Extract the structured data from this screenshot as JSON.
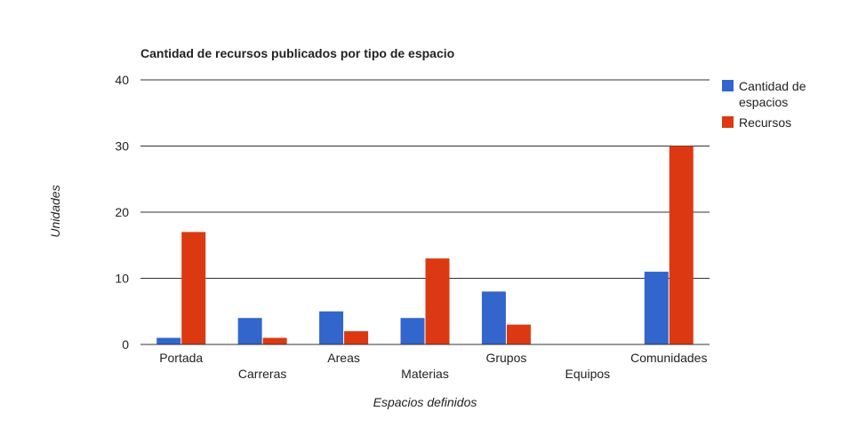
{
  "chart_data": {
    "type": "bar",
    "title": "Cantidad de recursos publicados por tipo de espacio",
    "xlabel": "Espacios definidos",
    "ylabel": "Unidades",
    "categories": [
      "Portada",
      "Carreras",
      "Areas",
      "Materias",
      "Grupos",
      "Equipos",
      "Comunidades"
    ],
    "series": [
      {
        "name": "Cantidad de espacios",
        "color": "#3366cc",
        "values": [
          1,
          4,
          5,
          4,
          8,
          0,
          11
        ]
      },
      {
        "name": "Recursos",
        "color": "#dc3912",
        "values": [
          17,
          1,
          2,
          13,
          3,
          0,
          30
        ]
      }
    ],
    "ylim": [
      0,
      40
    ],
    "yticks": [
      0,
      10,
      20,
      30,
      40
    ],
    "grid": true,
    "legend_position": "right"
  }
}
